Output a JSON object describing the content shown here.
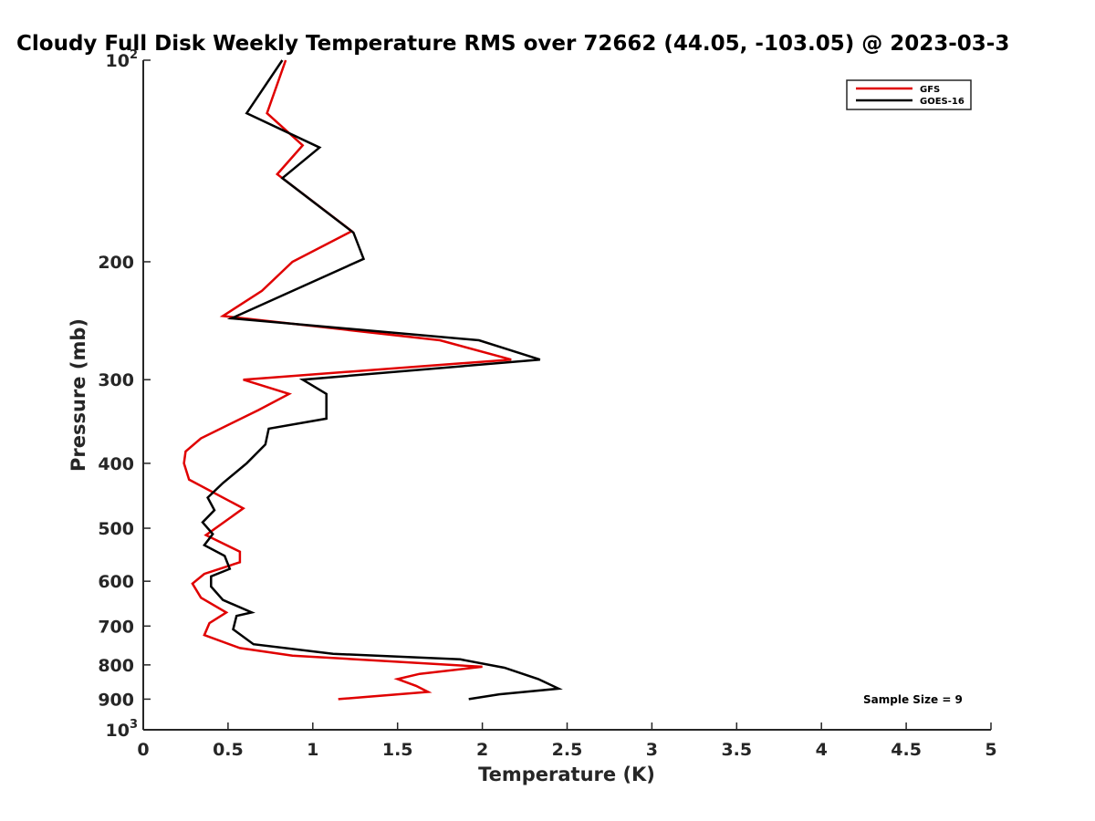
{
  "chart_data": {
    "type": "line",
    "title": "Cloudy Full Disk Weekly Temperature RMS over 72662 (44.05, -103.05) @ 2023-03-3",
    "xlabel": "Temperature (K)",
    "ylabel": "Pressure (mb)",
    "xlim": [
      0,
      5
    ],
    "ylim": [
      100,
      1000
    ],
    "y_scale": "log",
    "y_reversed": true,
    "x_ticks": [
      "0",
      "0.5",
      "1",
      "1.5",
      "2",
      "2.5",
      "3",
      "3.5",
      "4",
      "4.5",
      "5"
    ],
    "x_tick_values": [
      0,
      0.5,
      1,
      1.5,
      2,
      2.5,
      3,
      3.5,
      4,
      4.5,
      5
    ],
    "y_ticks": [
      {
        "value": 100,
        "base": "10",
        "exp": "2",
        "label": ""
      },
      {
        "value": 200,
        "label": "200"
      },
      {
        "value": 300,
        "label": "300"
      },
      {
        "value": 400,
        "label": "400"
      },
      {
        "value": 500,
        "label": "500"
      },
      {
        "value": 600,
        "label": "600"
      },
      {
        "value": 700,
        "label": "700"
      },
      {
        "value": 800,
        "label": "800"
      },
      {
        "value": 900,
        "label": "900"
      },
      {
        "value": 1000,
        "base": "10",
        "exp": "3",
        "label": ""
      }
    ],
    "grid": false,
    "legend_position": "top-right",
    "annotation": "Sample Size = 9",
    "series": [
      {
        "name": "GFS",
        "color": "#e00000",
        "points": [
          [
            0.84,
            100
          ],
          [
            0.73,
            120
          ],
          [
            0.94,
            134
          ],
          [
            0.79,
            148
          ],
          [
            1.23,
            180
          ],
          [
            0.88,
            200
          ],
          [
            0.7,
            221
          ],
          [
            0.47,
            241
          ],
          [
            1.75,
            262
          ],
          [
            2.17,
            280
          ],
          [
            0.59,
            300
          ],
          [
            0.86,
            315
          ],
          [
            0.68,
            333
          ],
          [
            0.34,
            367
          ],
          [
            0.25,
            384
          ],
          [
            0.24,
            400
          ],
          [
            0.27,
            423
          ],
          [
            0.59,
            467
          ],
          [
            0.37,
            512
          ],
          [
            0.57,
            542
          ],
          [
            0.57,
            562
          ],
          [
            0.36,
            585
          ],
          [
            0.29,
            605
          ],
          [
            0.34,
            635
          ],
          [
            0.49,
            668
          ],
          [
            0.39,
            693
          ],
          [
            0.36,
            722
          ],
          [
            0.57,
            755
          ],
          [
            0.88,
            775
          ],
          [
            2.0,
            805
          ],
          [
            1.63,
            825
          ],
          [
            1.5,
            840
          ],
          [
            1.61,
            860
          ],
          [
            1.68,
            878
          ],
          [
            1.15,
            900
          ]
        ]
      },
      {
        "name": "GOES-16",
        "color": "#000000",
        "points": [
          [
            0.82,
            100
          ],
          [
            0.61,
            120
          ],
          [
            1.04,
            135
          ],
          [
            0.82,
            150
          ],
          [
            1.24,
            181
          ],
          [
            1.3,
            198
          ],
          [
            0.52,
            243
          ],
          [
            1.98,
            262
          ],
          [
            2.34,
            280
          ],
          [
            0.94,
            300
          ],
          [
            1.08,
            315
          ],
          [
            1.08,
            343
          ],
          [
            0.74,
            355
          ],
          [
            0.72,
            375
          ],
          [
            0.61,
            400
          ],
          [
            0.47,
            428
          ],
          [
            0.38,
            450
          ],
          [
            0.42,
            470
          ],
          [
            0.35,
            490
          ],
          [
            0.41,
            510
          ],
          [
            0.36,
            530
          ],
          [
            0.48,
            550
          ],
          [
            0.51,
            575
          ],
          [
            0.4,
            590
          ],
          [
            0.4,
            611
          ],
          [
            0.47,
            640
          ],
          [
            0.64,
            668
          ],
          [
            0.55,
            676
          ],
          [
            0.53,
            708
          ],
          [
            0.65,
            745
          ],
          [
            1.12,
            770
          ],
          [
            1.87,
            785
          ],
          [
            2.13,
            808
          ],
          [
            2.33,
            840
          ],
          [
            2.45,
            868
          ],
          [
            2.1,
            885
          ],
          [
            1.92,
            900
          ]
        ]
      }
    ]
  }
}
